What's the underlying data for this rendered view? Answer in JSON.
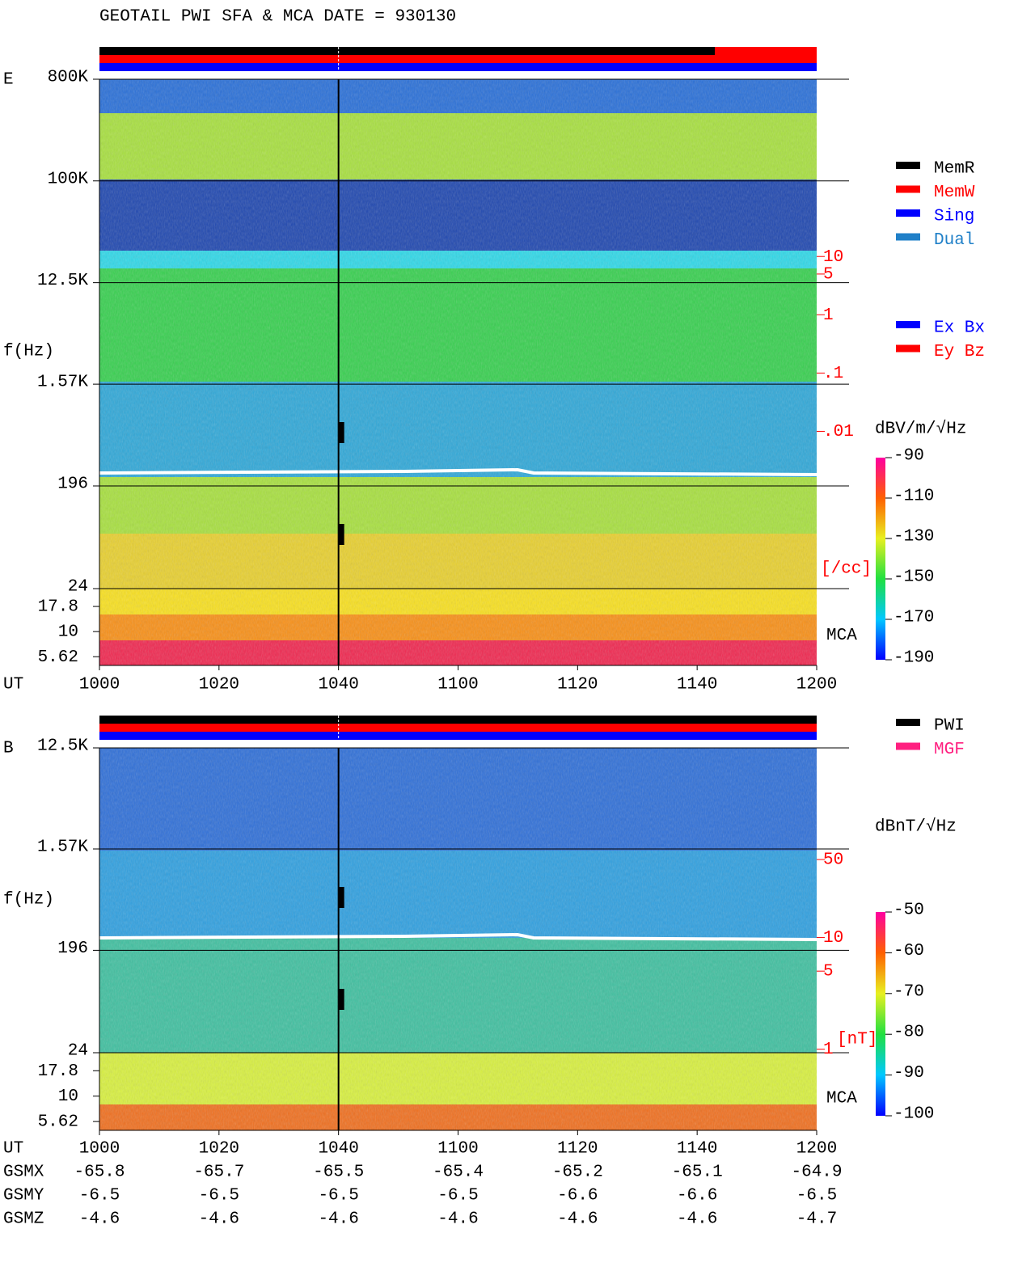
{
  "chart_data": [
    {
      "type": "spectrogram",
      "title": "GEOTAIL  PWI SFA & MCA   DATE = 930130",
      "panel_label": "E",
      "ylabel": "f(Hz)",
      "xlabel": "UT",
      "categories": [
        "1000",
        "1020",
        "1040",
        "1100",
        "1120",
        "1140",
        "1200"
      ],
      "log_scale": true,
      "ylim": [
        24,
        800000
      ],
      "yticks": [
        {
          "value": 800000,
          "label": "800K"
        },
        {
          "value": 100000,
          "label": "100K"
        },
        {
          "value": 12500,
          "label": "12.5K"
        },
        {
          "value": 1570,
          "label": "1.57K"
        },
        196,
        24
      ],
      "mca_label": "MCA",
      "mca_ylim": [
        4.6,
        26.8
      ],
      "mca_yticks": [
        17.8,
        10,
        5.62
      ],
      "y2label": "[/cc]",
      "y2lim": [
        2e-05,
        11000
      ],
      "y2ticks": [
        10,
        5,
        1,
        {
          "value": 0.1,
          "label": ".1"
        },
        {
          "value": 0.01,
          "label": ".01"
        }
      ],
      "legend": [
        {
          "name": "MemR",
          "color": "#000000"
        },
        {
          "name": "MemW",
          "color": "#ff0000"
        },
        {
          "name": "Sing",
          "color": "#0000ff"
        },
        {
          "name": "Dual",
          "color": "#2080c8"
        }
      ],
      "legend2": [
        {
          "name": "Ex Bx",
          "color": "#0000ff"
        },
        {
          "name": "Ey Bz",
          "color": "#ff0000"
        }
      ],
      "colorbar": {
        "label": "dBV/m/√Hz",
        "lim": [
          -190,
          -90
        ],
        "ticks": [
          -90,
          -110,
          -130,
          -150,
          -170,
          -190
        ]
      }
    },
    {
      "type": "spectrogram",
      "panel_label": "B",
      "ylabel": "f(Hz)",
      "xlabel": "UT",
      "categories": [
        "1000",
        "1020",
        "1040",
        "1100",
        "1120",
        "1140",
        "1200"
      ],
      "log_scale": true,
      "ylim": [
        24,
        12500
      ],
      "yticks": [
        {
          "value": 12500,
          "label": "12.5K"
        },
        {
          "value": 1570,
          "label": "1.57K"
        },
        196,
        24
      ],
      "mca_label": "MCA",
      "mca_ylim": [
        4.6,
        26.8
      ],
      "mca_yticks": [
        17.8,
        10,
        5.62
      ],
      "y2label": "[nT]",
      "y2lim": [
        0.93,
        500
      ],
      "y2ticks": [
        50,
        10,
        5,
        1
      ],
      "legend": [
        {
          "name": "PWI",
          "color": "#000000"
        },
        {
          "name": "MGF",
          "color": "#ff2080"
        }
      ],
      "colorbar": {
        "label": "dBnT/√Hz",
        "lim": [
          -100,
          -50
        ],
        "ticks": [
          -50,
          -60,
          -70,
          -80,
          -90,
          -100
        ]
      },
      "ephemeris": [
        {
          "name": "GSMX",
          "values": [
            -65.8,
            -65.7,
            -65.5,
            -65.4,
            -65.2,
            -65.1,
            -64.9
          ]
        },
        {
          "name": "GSMY",
          "values": [
            -6.5,
            -6.5,
            -6.5,
            -6.5,
            -6.6,
            -6.6,
            -6.5
          ]
        },
        {
          "name": "GSMZ",
          "values": [
            -4.6,
            -4.6,
            -4.6,
            -4.6,
            -4.6,
            -4.6,
            -4.7
          ]
        }
      ]
    }
  ]
}
